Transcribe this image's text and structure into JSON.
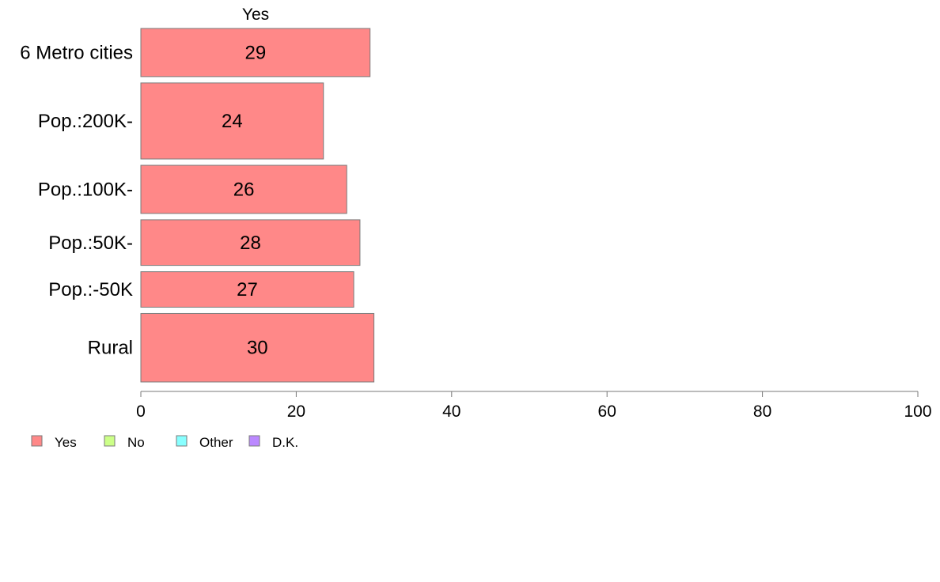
{
  "chart_data": {
    "type": "bar",
    "orientation": "horizontal",
    "stacked": true,
    "title": "Yes",
    "categories": [
      "6 Metro cities",
      "Pop.:200K-",
      "Pop.:100K-",
      "Pop.:50K-",
      "Pop.:-50K",
      "Rural"
    ],
    "category_weights": [
      0.95,
      1.5,
      0.95,
      0.9,
      0.7,
      1.35
    ],
    "series": [
      {
        "name": "Yes",
        "values": [
          29.5,
          23.5,
          26.5,
          28.2,
          27.4,
          30.0
        ],
        "labels": [
          "29",
          "24",
          "26",
          "28",
          "27",
          "30"
        ],
        "color": "#FF8888"
      }
    ],
    "xlim": [
      0,
      100
    ],
    "xticks": [
      "0",
      "20",
      "40",
      "60",
      "80",
      "100"
    ],
    "legend": {
      "position": "bottom-left",
      "items": [
        {
          "label": "Yes",
          "color": "#FF8888"
        },
        {
          "label": "No",
          "color": "#CCFF88"
        },
        {
          "label": "Other",
          "color": "#88FFFF"
        },
        {
          "label": "D.K.",
          "color": "#BB88FF"
        }
      ]
    },
    "grid": false
  }
}
